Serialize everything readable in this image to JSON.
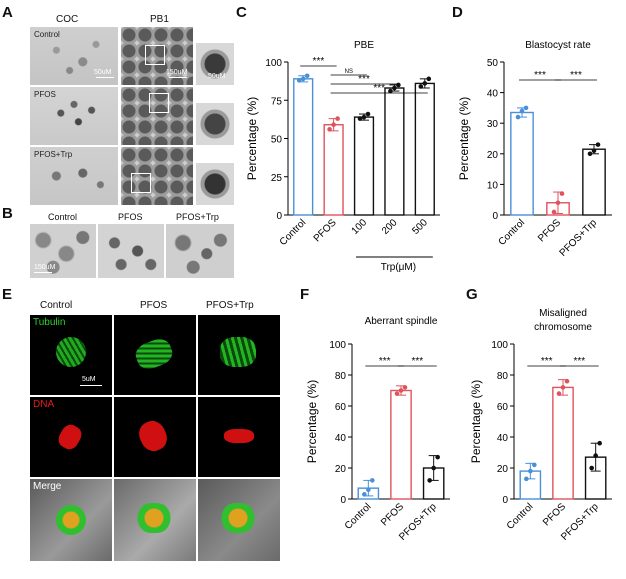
{
  "panels": {
    "A": {
      "label": "A",
      "col_headers": [
        "COC",
        "PB1"
      ],
      "row_labels": [
        "Control",
        "PFOS",
        "PFOS+Trp"
      ],
      "scale_bars": [
        "50uM",
        "150uM",
        "50uM"
      ]
    },
    "B": {
      "label": "B",
      "col_headers": [
        "Control",
        "PFOS",
        "PFOS+Trp"
      ],
      "scale_bar": "150uM"
    },
    "E": {
      "label": "E",
      "col_headers": [
        "Control",
        "PFOS",
        "PFOS+Trp"
      ],
      "row_labels": [
        "Tubulin",
        "DNA",
        "Merge"
      ],
      "scale_bar": "5uM"
    },
    "C": {
      "label": "C"
    },
    "D": {
      "label": "D"
    },
    "F": {
      "label": "F"
    },
    "G": {
      "label": "G"
    }
  },
  "colors": {
    "control": "#4a90d9",
    "pfos": "#e0525c",
    "trp": "#111111",
    "tubulin": "#2fd12f",
    "dna": "#e51b1b"
  },
  "chart_data": [
    {
      "id": "C",
      "type": "bar",
      "title": "PBE",
      "ylabel": "Percentage (%)",
      "categories": [
        "Control",
        "PFOS",
        "100",
        "200",
        "500"
      ],
      "group_label": "Trp(μM)",
      "values": [
        89,
        59,
        64,
        83,
        86
      ],
      "errors": [
        2,
        4,
        2,
        2,
        3
      ],
      "points": [
        [
          88,
          89,
          91
        ],
        [
          56,
          59,
          63
        ],
        [
          63,
          64,
          66
        ],
        [
          81,
          83,
          85
        ],
        [
          84,
          86,
          89
        ]
      ],
      "ylim": [
        0,
        100
      ],
      "yticks": [
        0,
        25,
        50,
        75,
        100
      ],
      "significance": [
        {
          "from": 0,
          "to": 1,
          "label": "***"
        },
        {
          "from": 1,
          "to": 2,
          "label": "NS"
        },
        {
          "from": 1,
          "to": 3,
          "label": "***"
        },
        {
          "from": 1,
          "to": 4,
          "label": "***"
        }
      ]
    },
    {
      "id": "D",
      "type": "bar",
      "title": "Blastocyst rate",
      "ylabel": "Percentage (%)",
      "categories": [
        "Control",
        "PFOS",
        "PFOS+Trp"
      ],
      "values": [
        33.5,
        4,
        21.5
      ],
      "errors": [
        1.5,
        3.5,
        1.5
      ],
      "points": [
        [
          32,
          34,
          35
        ],
        [
          1,
          4,
          7
        ],
        [
          20,
          21,
          23
        ]
      ],
      "ylim": [
        0,
        50
      ],
      "yticks": [
        0,
        10,
        20,
        30,
        40,
        50
      ],
      "significance": [
        {
          "from": 0,
          "to": 1,
          "label": "***"
        },
        {
          "from": 1,
          "to": 2,
          "label": "***"
        }
      ]
    },
    {
      "id": "F",
      "type": "bar",
      "title": "Aberrant spindle",
      "ylabel": "Percentage (%)",
      "categories": [
        "Control",
        "PFOS",
        "PFOS+Trp"
      ],
      "values": [
        7,
        70,
        20
      ],
      "errors": [
        5,
        3,
        8
      ],
      "points": [
        [
          3,
          6,
          12
        ],
        [
          68,
          70,
          72
        ],
        [
          12,
          20,
          27
        ]
      ],
      "ylim": [
        0,
        100
      ],
      "yticks": [
        0,
        20,
        40,
        60,
        80,
        100
      ],
      "significance": [
        {
          "from": 0,
          "to": 1,
          "label": "***"
        },
        {
          "from": 1,
          "to": 2,
          "label": "***"
        }
      ]
    },
    {
      "id": "G",
      "type": "bar",
      "title": "Misaligned chromosome",
      "title_lines": [
        "Misaligned",
        "chromosome"
      ],
      "ylabel": "Percentage (%)",
      "categories": [
        "Control",
        "PFOS",
        "PFOS+Trp"
      ],
      "values": [
        18,
        72,
        27
      ],
      "errors": [
        5,
        5,
        9
      ],
      "points": [
        [
          13,
          18,
          22
        ],
        [
          68,
          72,
          76
        ],
        [
          20,
          28,
          36
        ]
      ],
      "ylim": [
        0,
        100
      ],
      "yticks": [
        0,
        20,
        40,
        60,
        80,
        100
      ],
      "significance": [
        {
          "from": 0,
          "to": 1,
          "label": "***"
        },
        {
          "from": 1,
          "to": 2,
          "label": "***"
        }
      ]
    }
  ]
}
